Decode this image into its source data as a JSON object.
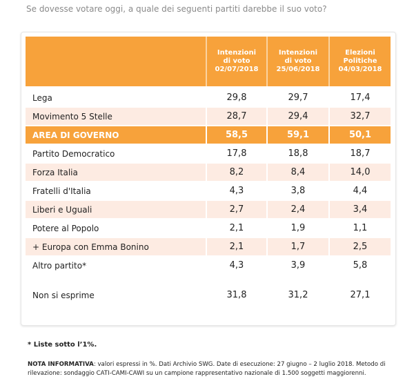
{
  "question": "Se dovesse votare oggi, a quale dei seguenti partiti darebbe il suo voto?",
  "colors": {
    "header_bg": "#f7a23b",
    "highlight_bg": "#f7a23b",
    "alt_row_bg": "#fdebe2"
  },
  "chart_data": {
    "type": "table",
    "columns": [
      {
        "lines": [
          "Intenzioni",
          "di voto",
          "02/07/2018"
        ]
      },
      {
        "lines": [
          "Intenzioni",
          "di voto",
          "25/06/2018"
        ]
      },
      {
        "lines": [
          "Elezioni",
          "Politiche",
          "04/03/2018"
        ]
      }
    ],
    "rows": [
      {
        "label": "Lega",
        "values": [
          "29,8",
          "29,7",
          "17,4"
        ],
        "style": "odd"
      },
      {
        "label": "Movimento 5 Stelle",
        "values": [
          "28,7",
          "29,4",
          "32,7"
        ],
        "style": "even"
      },
      {
        "label": "AREA DI GOVERNO",
        "values": [
          "58,5",
          "59,1",
          "50,1"
        ],
        "style": "highlight"
      },
      {
        "label": "Partito Democratico",
        "values": [
          "17,8",
          "18,8",
          "18,7"
        ],
        "style": "odd"
      },
      {
        "label": "Forza Italia",
        "values": [
          "8,2",
          "8,4",
          "14,0"
        ],
        "style": "even"
      },
      {
        "label": "Fratelli d'Italia",
        "values": [
          "4,3",
          "3,8",
          "4,4"
        ],
        "style": "odd"
      },
      {
        "label": "Liberi e Uguali",
        "values": [
          "2,7",
          "2,4",
          "3,4"
        ],
        "style": "even"
      },
      {
        "label": "Potere al Popolo",
        "values": [
          "2,1",
          "1,9",
          "1,1"
        ],
        "style": "odd"
      },
      {
        "label": "+ Europa con Emma Bonino",
        "values": [
          "2,1",
          "1,7",
          "2,5"
        ],
        "style": "even"
      },
      {
        "label": "Altro partito*",
        "values": [
          "4,3",
          "3,9",
          "5,8"
        ],
        "style": "odd"
      }
    ],
    "footer_row": {
      "label": "Non si esprime",
      "values": [
        "31,8",
        "31,2",
        "27,1"
      ]
    }
  },
  "footnote": "* Liste sotto l’1%.",
  "nota": {
    "label": "NOTA INFORMATIVA",
    "text": ": valori espressi in %. Dati Archivio SWG. Date di esecuzione: 27 giugno – 2 luglio 2018. Metodo di rilevazione: sondaggio CATI-CAMI-CAWI su un campione rappresentativo nazionale di 1.500 soggetti maggiorenni."
  }
}
